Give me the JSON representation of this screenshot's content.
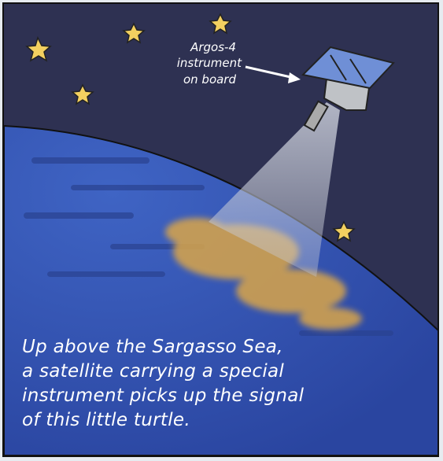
{
  "annotation": {
    "lines": [
      "Argos-4",
      "instrument",
      "on board"
    ]
  },
  "caption": {
    "lines": [
      "Up above the Sargasso Sea,",
      "a satellite carrying a special",
      "instrument picks up the signal",
      "of this little turtle."
    ]
  }
}
